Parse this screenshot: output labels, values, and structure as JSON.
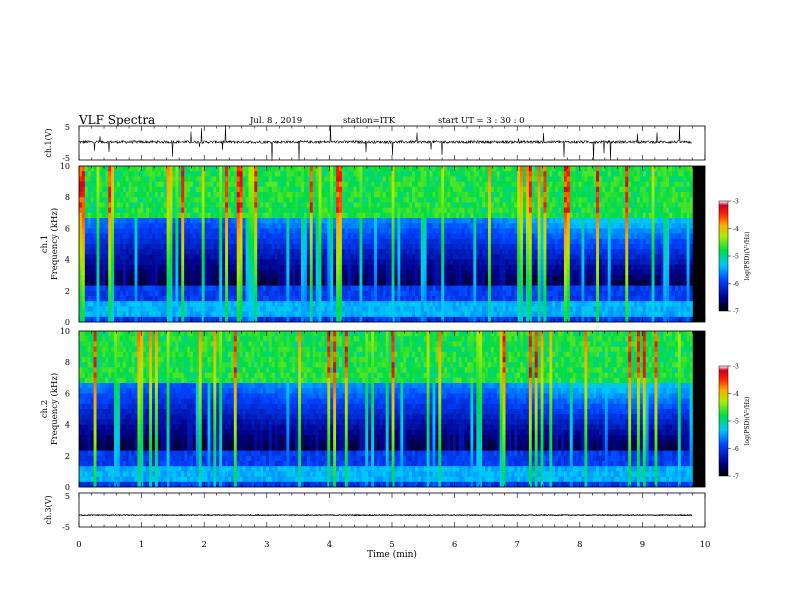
{
  "header": {
    "title": "VLF Spectra",
    "date": "Jul. 8 , 2019",
    "station": "station=ITK",
    "start_ut": "start UT = 3 : 30 : 0"
  },
  "chart_data": [
    {
      "type": "line",
      "ylabel": "ch.1(V)",
      "ylim": [
        -5,
        5
      ],
      "yticks": [
        "5",
        "-5"
      ],
      "xlim": [
        0,
        10
      ],
      "x_data_extent_min": [
        0,
        9.8
      ],
      "baseline_v": 0.3
    },
    {
      "type": "heatmap",
      "ylabel": "ch.1\nFrequency (kHz)",
      "ylabel_line1": "ch.1",
      "ylabel_line2": "Frequency (kHz)",
      "ylim": [
        0,
        10
      ],
      "yticks": [
        "0",
        "2",
        "4",
        "6",
        "8",
        "10"
      ],
      "xlim": [
        0,
        10
      ],
      "colorbar": {
        "label": "log(PSD)(V²/Hz)",
        "range": [
          -7,
          -3
        ],
        "ticks": [
          "-3",
          "-4",
          "-5",
          "-6",
          "-7"
        ]
      }
    },
    {
      "type": "heatmap",
      "ylabel": "ch.2\nFrequency (kHz)",
      "ylabel_line1": "ch.2",
      "ylabel_line2": "Frequency (kHz)",
      "ylim": [
        0,
        10
      ],
      "yticks": [
        "0",
        "2",
        "4",
        "6",
        "8",
        "10"
      ],
      "xlim": [
        0,
        10
      ],
      "colorbar": {
        "label": "log(PSD)(V²/Hz)",
        "range": [
          -7,
          -3
        ],
        "ticks": [
          "-3",
          "-4",
          "-5",
          "-6",
          "-7"
        ]
      }
    },
    {
      "type": "line",
      "ylabel": "ch.3(V)",
      "ylim": [
        -5,
        5
      ],
      "yticks": [
        "5",
        "-5"
      ],
      "xlim": [
        0,
        10
      ],
      "xlabel": "Time (min)",
      "xticks": [
        "0",
        "1",
        "2",
        "3",
        "4",
        "5",
        "6",
        "7",
        "8",
        "9",
        "10"
      ],
      "baseline_v": -1.5
    }
  ]
}
